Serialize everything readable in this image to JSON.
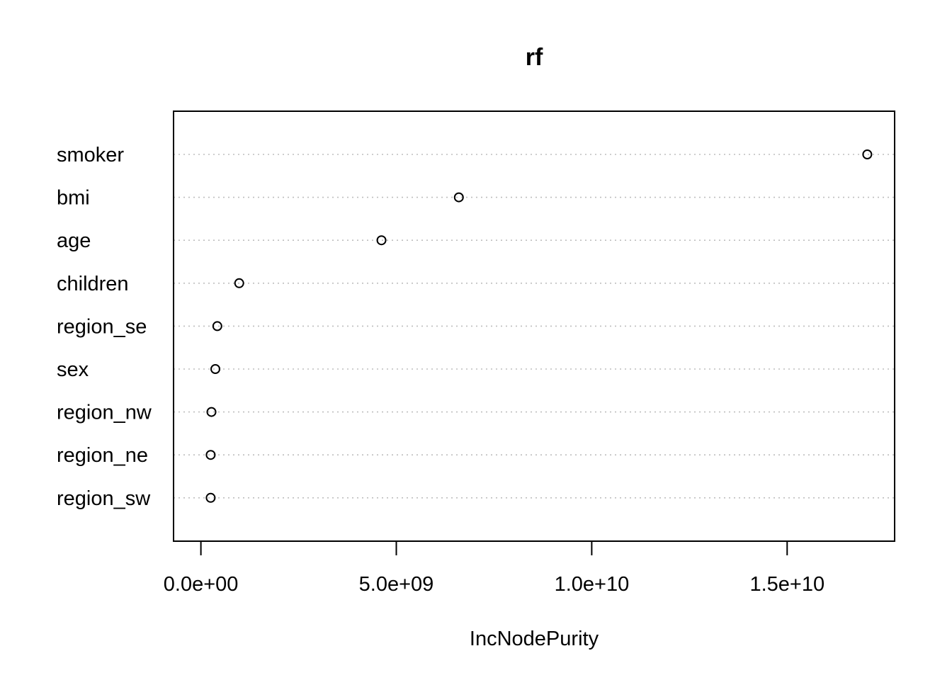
{
  "chart_data": {
    "type": "scatter",
    "title": "rf",
    "xlabel": "IncNodePurity",
    "ylabel": "",
    "categories": [
      "smoker",
      "bmi",
      "age",
      "children",
      "region_se",
      "sex",
      "region_nw",
      "region_ne",
      "region_sw"
    ],
    "values": [
      17050000000,
      6600000000,
      4620000000,
      980000000,
      420000000,
      370000000,
      270000000,
      250000000,
      250000000
    ],
    "xlim": [
      -700000000,
      17750000000
    ],
    "xticks": [
      0,
      5000000000,
      10000000000,
      15000000000
    ],
    "xtick_labels": [
      "0.0e+00",
      "5.0e+09",
      "1.0e+10",
      "1.5e+10"
    ],
    "grid": "dotted horizontal lines per category",
    "marker": "open circle",
    "colors": {
      "axis": "#000000",
      "grid": "#bebebe",
      "marker": "#000000"
    }
  }
}
